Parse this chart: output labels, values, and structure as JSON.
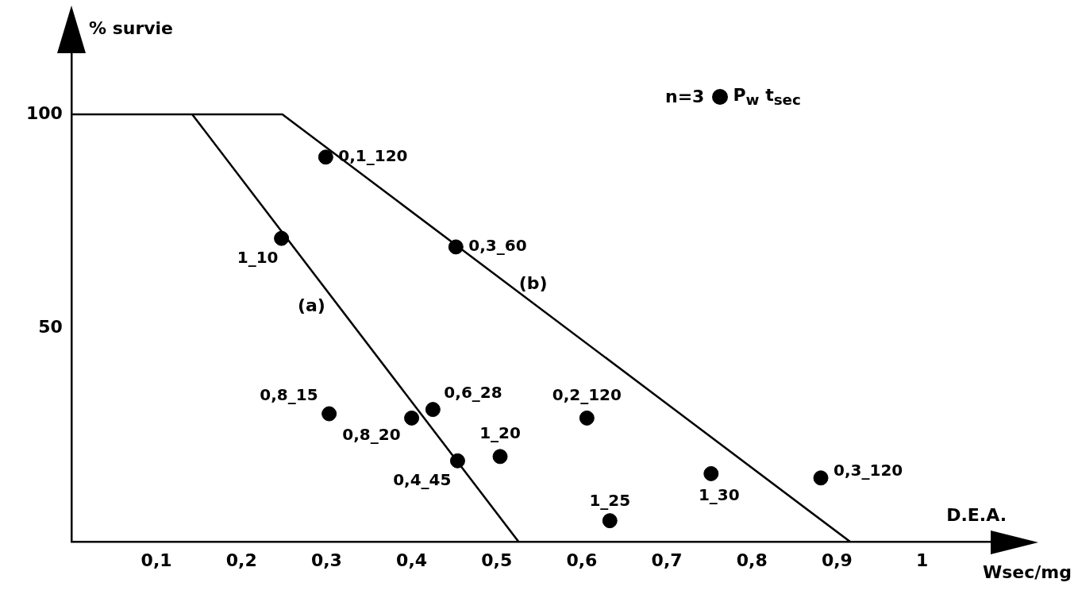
{
  "chart_data": {
    "type": "scatter",
    "ylabel": "% survie",
    "xlabel": "D.E.A.",
    "annotations": [
      "Wsec/mg",
      "n=3",
      "(a)",
      "(b)"
    ],
    "legend": "top right",
    "series": [
      {
        "name": "P$_{w}$ t$_{sec}$",
        "type": "scatter",
        "marker": "circle",
        "color": "#000000",
        "x": [
          0.247,
          0.299,
          0.303,
          0.4,
          0.425,
          0.452,
          0.454,
          0.504,
          0.606,
          0.633,
          0.752,
          0.881
        ],
        "values": [
          71,
          90,
          30,
          29,
          31,
          69,
          19,
          20,
          29,
          5,
          16,
          15
        ],
        "value_labels": [
          "1_10",
          "0,1_120",
          "0,8_15",
          "0,8_20",
          "0,6_28",
          "0,3_60",
          "0,4_45",
          "1_20",
          "0,2_120",
          "1_25",
          "1_30",
          "0,3_120"
        ]
      },
      {
        "type": "line",
        "color": "#000000",
        "x": [
          0.142,
          0.526
        ],
        "values": [
          100,
          0
        ]
      },
      {
        "type": "line",
        "color": "#000000",
        "x": [
          0,
          0.248,
          0.916
        ],
        "values": [
          100,
          100,
          0
        ]
      }
    ],
    "xlim": [
      0,
      1.09
    ],
    "ylim": [
      0,
      118
    ],
    "xticks": [
      {
        "value": 0.1,
        "label": "0,1"
      },
      {
        "value": 0.2,
        "label": "0,2"
      },
      {
        "value": 0.3,
        "label": "0,3"
      },
      {
        "value": 0.4,
        "label": "0,4"
      },
      {
        "value": 0.5,
        "label": "0,5"
      },
      {
        "value": 0.6,
        "label": "0,6"
      },
      {
        "value": 0.7,
        "label": "0,7"
      },
      {
        "value": 0.8,
        "label": "0,8"
      },
      {
        "value": 0.9,
        "label": "0,9"
      },
      1
    ],
    "yticks": [
      50,
      100
    ],
    "grid": false
  }
}
